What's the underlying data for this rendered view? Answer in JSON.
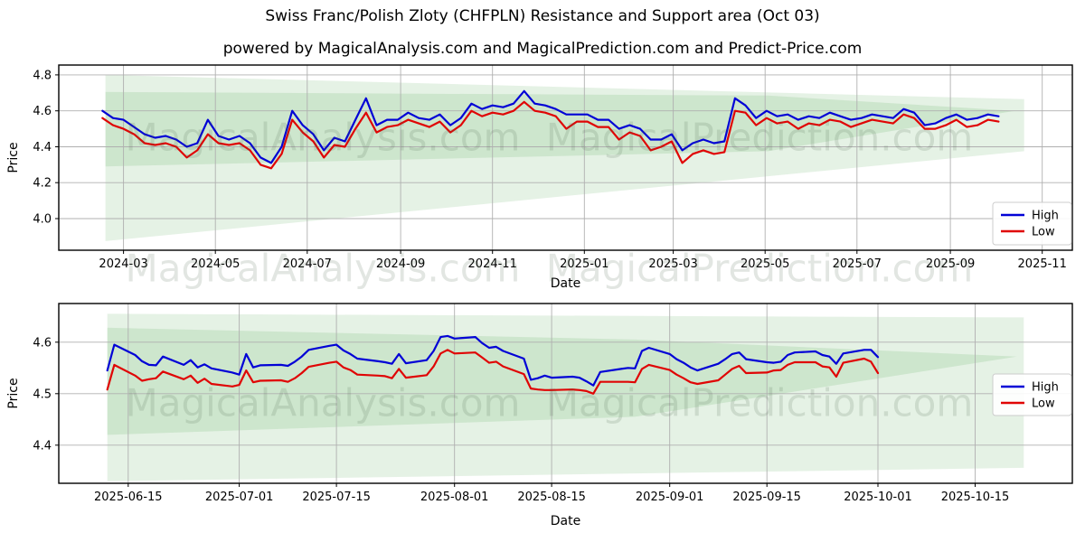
{
  "figure": {
    "title": "Swiss Franc/Polish Zloty (CHFPLN) Resistance and Support area (Oct 03)",
    "subtitle": "powered by MagicalAnalysis.com and MagicalPrediction.com and Predict-Price.com"
  },
  "watermarks": {
    "analysis": "MagicalAnalysis.com",
    "prediction": "MagicalPrediction.com"
  },
  "style": {
    "band_color": "#008000",
    "band_opacity": 0.1,
    "grid_color": "#b0b0b0",
    "spine_color": "#000000",
    "high_color": "#0202d6",
    "low_color": "#e00505",
    "legend_border": "#cccccc"
  },
  "chart_data": [
    {
      "type": "line",
      "name": "history",
      "xlabel": "Date",
      "ylabel": "Price",
      "x_range": [
        17,
        690
      ],
      "y_range": [
        3.824,
        4.855
      ],
      "x_ticks": [
        {
          "day": 60,
          "label": "2024-03"
        },
        {
          "day": 121,
          "label": "2024-05"
        },
        {
          "day": 182,
          "label": "2024-07"
        },
        {
          "day": 244,
          "label": "2024-09"
        },
        {
          "day": 305,
          "label": "2024-11"
        },
        {
          "day": 366,
          "label": "2025-01"
        },
        {
          "day": 425,
          "label": "2025-03"
        },
        {
          "day": 486,
          "label": "2025-05"
        },
        {
          "day": 547,
          "label": "2025-07"
        },
        {
          "day": 609,
          "label": "2025-09"
        },
        {
          "day": 670,
          "label": "2025-11"
        }
      ],
      "y_ticks": [
        {
          "value": 4.8,
          "label": "4.8"
        },
        {
          "value": 4.6,
          "label": "4.6"
        },
        {
          "value": 4.4,
          "label": "4.4"
        },
        {
          "value": 4.2,
          "label": "4.2"
        },
        {
          "value": 4.0,
          "label": "4.0"
        }
      ],
      "days": [
        46,
        53,
        60,
        67,
        74,
        81,
        88,
        95,
        102,
        109,
        116,
        123,
        130,
        137,
        144,
        151,
        158,
        165,
        172,
        179,
        186,
        193,
        200,
        207,
        214,
        221,
        228,
        235,
        242,
        249,
        256,
        263,
        270,
        277,
        284,
        291,
        298,
        305,
        312,
        319,
        326,
        333,
        340,
        347,
        354,
        361,
        368,
        375,
        382,
        389,
        396,
        403,
        410,
        417,
        424,
        431,
        438,
        445,
        452,
        459,
        466,
        473,
        480,
        487,
        494,
        501,
        508,
        515,
        522,
        529,
        536,
        543,
        550,
        557,
        564,
        571,
        578,
        585,
        592,
        599,
        606,
        613,
        620,
        627,
        634,
        641
      ],
      "series": [
        {
          "name": "High",
          "label": "High",
          "color": "#0202d6",
          "values": [
            4.6,
            4.56,
            4.55,
            4.51,
            4.47,
            4.45,
            4.46,
            4.44,
            4.4,
            4.42,
            4.55,
            4.46,
            4.44,
            4.46,
            4.42,
            4.34,
            4.31,
            4.4,
            4.6,
            4.52,
            4.47,
            4.38,
            4.45,
            4.43,
            4.55,
            4.67,
            4.52,
            4.55,
            4.55,
            4.59,
            4.56,
            4.55,
            4.58,
            4.52,
            4.56,
            4.64,
            4.61,
            4.63,
            4.62,
            4.64,
            4.71,
            4.64,
            4.63,
            4.61,
            4.58,
            4.58,
            4.58,
            4.55,
            4.55,
            4.5,
            4.52,
            4.5,
            4.44,
            4.44,
            4.47,
            4.38,
            4.42,
            4.44,
            4.42,
            4.43,
            4.67,
            4.63,
            4.56,
            4.6,
            4.57,
            4.58,
            4.55,
            4.57,
            4.56,
            4.59,
            4.57,
            4.55,
            4.56,
            4.58,
            4.57,
            4.56,
            4.61,
            4.59,
            4.52,
            4.53,
            4.56,
            4.58,
            4.55,
            4.56,
            4.58,
            4.57
          ]
        },
        {
          "name": "Low",
          "label": "Low",
          "color": "#e00505",
          "values": [
            4.56,
            4.52,
            4.5,
            4.47,
            4.42,
            4.41,
            4.42,
            4.4,
            4.34,
            4.38,
            4.47,
            4.42,
            4.41,
            4.42,
            4.38,
            4.3,
            4.28,
            4.36,
            4.55,
            4.48,
            4.43,
            4.34,
            4.41,
            4.4,
            4.5,
            4.59,
            4.48,
            4.51,
            4.52,
            4.55,
            4.53,
            4.51,
            4.54,
            4.48,
            4.52,
            4.6,
            4.57,
            4.59,
            4.58,
            4.6,
            4.65,
            4.6,
            4.59,
            4.57,
            4.5,
            4.54,
            4.54,
            4.51,
            4.51,
            4.44,
            4.48,
            4.46,
            4.38,
            4.4,
            4.43,
            4.31,
            4.36,
            4.38,
            4.36,
            4.37,
            4.6,
            4.59,
            4.52,
            4.56,
            4.53,
            4.54,
            4.5,
            4.53,
            4.52,
            4.55,
            4.54,
            4.51,
            4.53,
            4.55,
            4.54,
            4.53,
            4.58,
            4.56,
            4.5,
            4.5,
            4.52,
            4.55,
            4.51,
            4.52,
            4.55,
            4.54
          ]
        }
      ],
      "bands": [
        {
          "name": "outer-area",
          "points": [
            [
              48,
              4.8
            ],
            [
              658,
              4.665
            ],
            [
              658,
              4.375
            ],
            [
              48,
              3.875
            ]
          ]
        },
        {
          "name": "inner-area",
          "points": [
            [
              48,
              4.705
            ],
            [
              488,
              4.685
            ],
            [
              652,
              4.6
            ],
            [
              488,
              4.375
            ],
            [
              48,
              4.29
            ]
          ]
        }
      ],
      "legend": [
        "High",
        "Low"
      ]
    },
    {
      "type": "line",
      "name": "recent",
      "xlabel": "Date",
      "ylabel": "Price",
      "x_range": [
        521,
        667
      ],
      "y_range": [
        4.326,
        4.675
      ],
      "x_ticks": [
        {
          "day": 531,
          "label": "2025-06-15"
        },
        {
          "day": 547,
          "label": "2025-07-01"
        },
        {
          "day": 561,
          "label": "2025-07-15"
        },
        {
          "day": 578,
          "label": "2025-08-01"
        },
        {
          "day": 592,
          "label": "2025-08-15"
        },
        {
          "day": 609,
          "label": "2025-09-01"
        },
        {
          "day": 623,
          "label": "2025-09-15"
        },
        {
          "day": 639,
          "label": "2025-10-01"
        },
        {
          "day": 653,
          "label": "2025-10-15"
        }
      ],
      "y_ticks": [
        {
          "value": 4.6,
          "label": "4.6"
        },
        {
          "value": 4.5,
          "label": "4.5"
        },
        {
          "value": 4.4,
          "label": "4.4"
        }
      ],
      "days": [
        528,
        529,
        532,
        533,
        534,
        535,
        536,
        539,
        540,
        541,
        542,
        543,
        546,
        547,
        548,
        549,
        550,
        553,
        554,
        555,
        556,
        557,
        560,
        561,
        562,
        563,
        564,
        567,
        568,
        569,
        570,
        571,
        574,
        575,
        576,
        577,
        578,
        581,
        582,
        583,
        584,
        585,
        588,
        589,
        590,
        591,
        592,
        595,
        596,
        597,
        598,
        599,
        602,
        603,
        604,
        605,
        606,
        609,
        610,
        611,
        612,
        613,
        616,
        617,
        618,
        619,
        620,
        623,
        624,
        625,
        626,
        627,
        630,
        631,
        632,
        633,
        634,
        637,
        638,
        639
      ],
      "series": [
        {
          "name": "High",
          "label": "High",
          "color": "#0202d6",
          "values": [
            4.545,
            4.595,
            4.575,
            4.563,
            4.556,
            4.555,
            4.572,
            4.556,
            4.565,
            4.551,
            4.557,
            4.549,
            4.541,
            4.537,
            4.577,
            4.551,
            4.555,
            4.556,
            4.554,
            4.562,
            4.572,
            4.585,
            4.593,
            4.595,
            4.584,
            4.577,
            4.568,
            4.563,
            4.561,
            4.558,
            4.577,
            4.559,
            4.565,
            4.583,
            4.61,
            4.612,
            4.607,
            4.61,
            4.598,
            4.589,
            4.591,
            4.583,
            4.568,
            4.527,
            4.53,
            4.535,
            4.531,
            4.533,
            4.531,
            4.524,
            4.516,
            4.542,
            4.548,
            4.55,
            4.549,
            4.583,
            4.589,
            4.577,
            4.567,
            4.56,
            4.551,
            4.545,
            4.558,
            4.567,
            4.577,
            4.58,
            4.567,
            4.561,
            4.56,
            4.562,
            4.575,
            4.58,
            4.582,
            4.575,
            4.572,
            4.558,
            4.578,
            4.585,
            4.585,
            4.571
          ]
        },
        {
          "name": "Low",
          "label": "Low",
          "color": "#e00505",
          "values": [
            4.508,
            4.556,
            4.535,
            4.525,
            4.528,
            4.53,
            4.543,
            4.528,
            4.535,
            4.521,
            4.529,
            4.519,
            4.514,
            4.517,
            4.545,
            4.522,
            4.525,
            4.526,
            4.523,
            4.53,
            4.54,
            4.552,
            4.56,
            4.562,
            4.551,
            4.546,
            4.537,
            4.535,
            4.534,
            4.53,
            4.548,
            4.531,
            4.536,
            4.553,
            4.578,
            4.585,
            4.578,
            4.58,
            4.57,
            4.56,
            4.562,
            4.553,
            4.538,
            4.51,
            4.508,
            4.507,
            4.507,
            4.508,
            4.507,
            4.505,
            4.5,
            4.523,
            4.523,
            4.523,
            4.522,
            4.548,
            4.556,
            4.546,
            4.537,
            4.53,
            4.522,
            4.519,
            4.526,
            4.537,
            4.548,
            4.554,
            4.54,
            4.541,
            4.545,
            4.546,
            4.556,
            4.561,
            4.561,
            4.553,
            4.551,
            4.533,
            4.56,
            4.568,
            4.562,
            4.54
          ]
        }
      ],
      "bands": [
        {
          "name": "outer-area",
          "points": [
            [
              528,
              4.655
            ],
            [
              660,
              4.648
            ],
            [
              660,
              4.356
            ],
            [
              528,
              4.33
            ]
          ]
        },
        {
          "name": "inner-area",
          "points": [
            [
              528,
              4.628
            ],
            [
              604,
              4.605
            ],
            [
              659,
              4.572
            ],
            [
              604,
              4.455
            ],
            [
              528,
              4.42
            ]
          ]
        }
      ],
      "legend": [
        "High",
        "Low"
      ]
    }
  ]
}
